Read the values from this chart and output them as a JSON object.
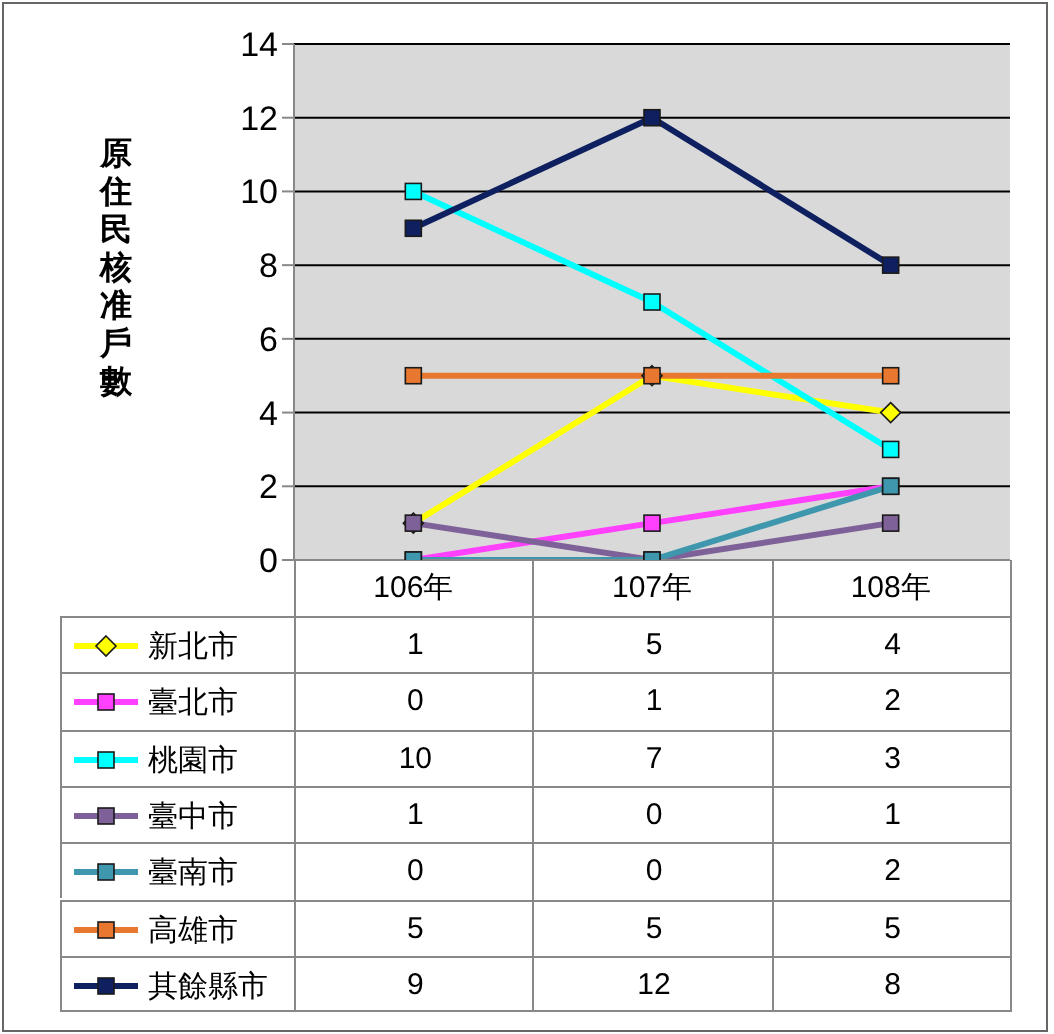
{
  "chart_data": {
    "type": "line",
    "ylabel": "原住民核准戶數",
    "categories": [
      "106年",
      "107年",
      "108年"
    ],
    "series": [
      {
        "name": "新北市",
        "color": "#ffff00",
        "marker": "diamond",
        "values": [
          1,
          5,
          4
        ]
      },
      {
        "name": "臺北市",
        "color": "#ff40ff",
        "marker": "square",
        "values": [
          0,
          1,
          2
        ]
      },
      {
        "name": "桃園市",
        "color": "#00ffff",
        "marker": "square",
        "values": [
          10,
          7,
          3
        ]
      },
      {
        "name": "臺中市",
        "color": "#7f6199",
        "marker": "square",
        "values": [
          1,
          0,
          1
        ]
      },
      {
        "name": "臺南市",
        "color": "#3f97ad",
        "marker": "square",
        "values": [
          0,
          0,
          2
        ]
      },
      {
        "name": "高雄市",
        "color": "#e8782f",
        "marker": "square",
        "values": [
          5,
          5,
          5
        ]
      },
      {
        "name": "其餘縣市",
        "color": "#0f2060",
        "marker": "square",
        "values": [
          9,
          12,
          8
        ]
      }
    ],
    "ylim": [
      0,
      14
    ],
    "yticks": [
      0,
      2,
      4,
      6,
      8,
      10,
      12,
      14
    ],
    "grid": "y",
    "legend": "bottom",
    "data_labels": true
  }
}
